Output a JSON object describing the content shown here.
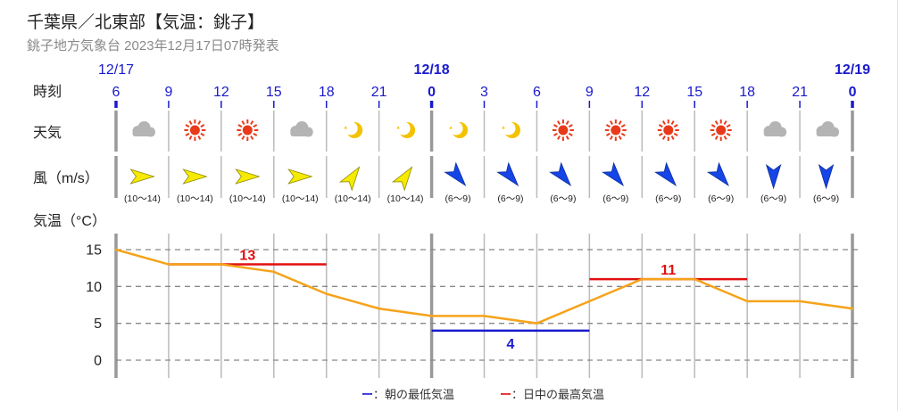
{
  "header": {
    "title": "千葉県／北東部【気温：銚子】",
    "subtitle": "銚子地方気象台 2023年12月17日07時発表"
  },
  "row_labels": {
    "time": "時刻",
    "weather": "天気",
    "wind": "風（m/s）",
    "temp": "気温（°C）"
  },
  "colors": {
    "low_line": "#1a1acc",
    "high_line": "#e01010",
    "temperature_line": "#f5a31a",
    "date_text": "#1a1acc"
  },
  "legend": {
    "low": "ー：朝の最低気温",
    "high": "ー：日中の最高気温"
  },
  "date_markers": [
    {
      "label": "12/17",
      "index": 0
    },
    {
      "label": "12/18",
      "index": 6
    },
    {
      "label": "12/19",
      "index": 14
    }
  ],
  "hours": [
    "6",
    "9",
    "12",
    "15",
    "18",
    "21",
    "0",
    "3",
    "6",
    "9",
    "12",
    "15",
    "18",
    "21",
    "0"
  ],
  "weather": [
    "cloudy-icon",
    "sunny-icon",
    "sunny-icon",
    "cloudy-icon",
    "clear-night-icon",
    "clear-night-icon",
    "clear-night-icon",
    "clear-night-icon",
    "sunny-icon",
    "sunny-icon",
    "sunny-icon",
    "sunny-icon",
    "cloudy-icon",
    "cloudy-icon"
  ],
  "wind": {
    "directions": [
      "W",
      "W",
      "W",
      "W",
      "SW",
      "SW",
      "NW",
      "NW",
      "NW",
      "NW",
      "NW",
      "NW",
      "N",
      "N"
    ],
    "speeds": [
      "(10〜14)",
      "(10〜14)",
      "(10〜14)",
      "(10〜14)",
      "(10〜14)",
      "(10〜14)",
      "(6〜9)",
      "(6〜9)",
      "(6〜9)",
      "(6〜9)",
      "(6〜9)",
      "(6〜9)",
      "(6〜9)",
      "(6〜9)"
    ]
  },
  "chart_data": {
    "type": "line",
    "x": [
      "12/17 6",
      "9",
      "12",
      "15",
      "18",
      "21",
      "12/18 0",
      "3",
      "6",
      "9",
      "12",
      "15",
      "18",
      "21",
      "12/19 0"
    ],
    "series": [
      {
        "values": [
          15,
          13,
          13,
          12,
          9,
          7,
          6,
          6,
          5,
          8,
          11,
          11,
          8,
          8,
          7
        ]
      }
    ],
    "ylabel": "気温（°C）",
    "ylim": [
      0,
      15
    ],
    "yticks": [
      0,
      5,
      10,
      15
    ],
    "grid": true,
    "extremes": [
      {
        "kind": "high",
        "value": 13,
        "label": "13",
        "from": 1,
        "to": 4
      },
      {
        "kind": "low",
        "value": 4,
        "label": "4",
        "from": 6,
        "to": 9
      },
      {
        "kind": "high",
        "value": 11,
        "label": "11",
        "from": 9,
        "to": 12
      }
    ]
  }
}
